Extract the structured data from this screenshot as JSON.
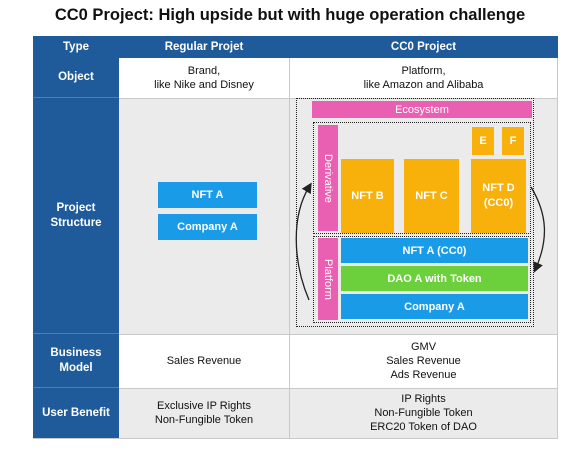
{
  "title": "CC0 Project: High upside but with huge operation challenge",
  "table": {
    "headers": [
      "Type",
      "Regular Projet",
      "CC0 Project"
    ],
    "rows": {
      "object": {
        "label": "Object",
        "regular": [
          "Brand,",
          "like Nike and Disney"
        ],
        "cc0": [
          "Platform,",
          "like Amazon and Alibaba"
        ]
      },
      "structure": {
        "label": [
          "Project",
          "Structure"
        ]
      },
      "business": {
        "label": [
          "Business",
          "Model"
        ],
        "regular": [
          "Sales Revenue"
        ],
        "cc0": [
          "GMV",
          "Sales Revenue",
          "Ads Revenue"
        ]
      },
      "benefit": {
        "label": "User Benefit",
        "regular": [
          "Exclusive IP Rights",
          "Non-Fungible Token"
        ],
        "cc0": [
          "IP Rights",
          "Non-Fungible Token",
          "ERC20 Token of DAO"
        ]
      }
    }
  },
  "regular_structure": {
    "nft": "NFT A",
    "company": "Company A"
  },
  "cc0_structure": {
    "ecosystem": "Ecosystem",
    "derivative": "Derivative",
    "platform": "Platform",
    "nft_b": "NFT B",
    "nft_c": "NFT C",
    "nft_d": [
      "NFT D",
      "(CC0)"
    ],
    "e": "E",
    "f": "F",
    "nft_a_cc0": "NFT A (CC0)",
    "dao": "DAO A with Token",
    "company": "Company A"
  },
  "colors": {
    "header_blue": "#1f5b9b",
    "box_blue": "#1a9be8",
    "orange": "#f7b10a",
    "green": "#6cd03c",
    "pink": "#e95fb1",
    "gray": "#ebebeb"
  }
}
